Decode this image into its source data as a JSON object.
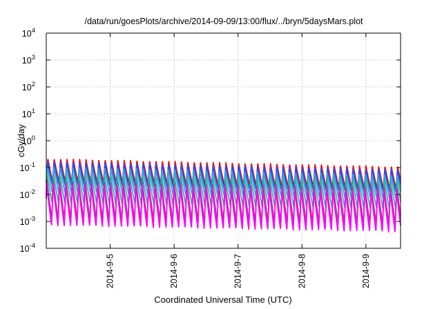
{
  "chart_data": {
    "type": "line",
    "title": "/data/run/goesPlots/archive/2014-09-09/13:00/flux/../bryn/5daysMars.plot",
    "xlabel": "Coordinated Universal Time (UTC)",
    "ylabel": "cGy/day",
    "yscale": "log",
    "ylim": [
      0.0001,
      10000
    ],
    "xlim": [
      "2014-09-04 00:00",
      "2014-09-09 13:00"
    ],
    "grid": true,
    "legend": "none",
    "y_ticks": [
      {
        "value": 0.0001,
        "base": "10",
        "exp": "-4"
      },
      {
        "value": 0.001,
        "base": "10",
        "exp": "-3"
      },
      {
        "value": 0.01,
        "base": "10",
        "exp": "-2"
      },
      {
        "value": 0.1,
        "base": "10",
        "exp": "-1"
      },
      {
        "value": 1,
        "base": "10",
        "exp": "0"
      },
      {
        "value": 10,
        "base": "10",
        "exp": "1"
      },
      {
        "value": 100,
        "base": "10",
        "exp": "2"
      },
      {
        "value": 1000,
        "base": "10",
        "exp": "3"
      },
      {
        "value": 10000,
        "base": "10",
        "exp": "4"
      }
    ],
    "x_ticks": [
      {
        "label": "2014-9-5",
        "date": "2014-09-05"
      },
      {
        "label": "2014-9-6",
        "date": "2014-09-06"
      },
      {
        "label": "2014-9-7",
        "date": "2014-09-07"
      },
      {
        "label": "2014-9-8",
        "date": "2014-09-08"
      },
      {
        "label": "2014-9-9",
        "date": "2014-09-09"
      }
    ],
    "series": [
      {
        "color": "#ff0000",
        "peak_start": 0.22,
        "peak_end": 0.11,
        "trough_start": 0.03,
        "trough_end": 0.016,
        "phase": 0.0
      },
      {
        "color": "#1f4fff",
        "peak_start": 0.17,
        "peak_end": 0.085,
        "trough_start": 0.022,
        "trough_end": 0.012,
        "phase": 0.02
      },
      {
        "color": "#2aa6e0",
        "peak_start": 0.11,
        "peak_end": 0.055,
        "trough_start": 0.012,
        "trough_end": 0.007,
        "phase": 0.05
      },
      {
        "color": "#1fbf8f",
        "peak_start": 0.06,
        "peak_end": 0.035,
        "trough_start": 0.005,
        "trough_end": 0.003,
        "phase": 0.09
      },
      {
        "color": "#c0308f",
        "peak_start": 0.035,
        "peak_end": 0.02,
        "trough_start": 0.0012,
        "trough_end": 0.0008,
        "phase": 0.13
      },
      {
        "color": "#ff00ff",
        "peak_start": 0.025,
        "peak_end": 0.014,
        "trough_start": 0.0007,
        "trough_end": 0.0004,
        "phase": 0.17
      }
    ],
    "cycles": 56
  }
}
